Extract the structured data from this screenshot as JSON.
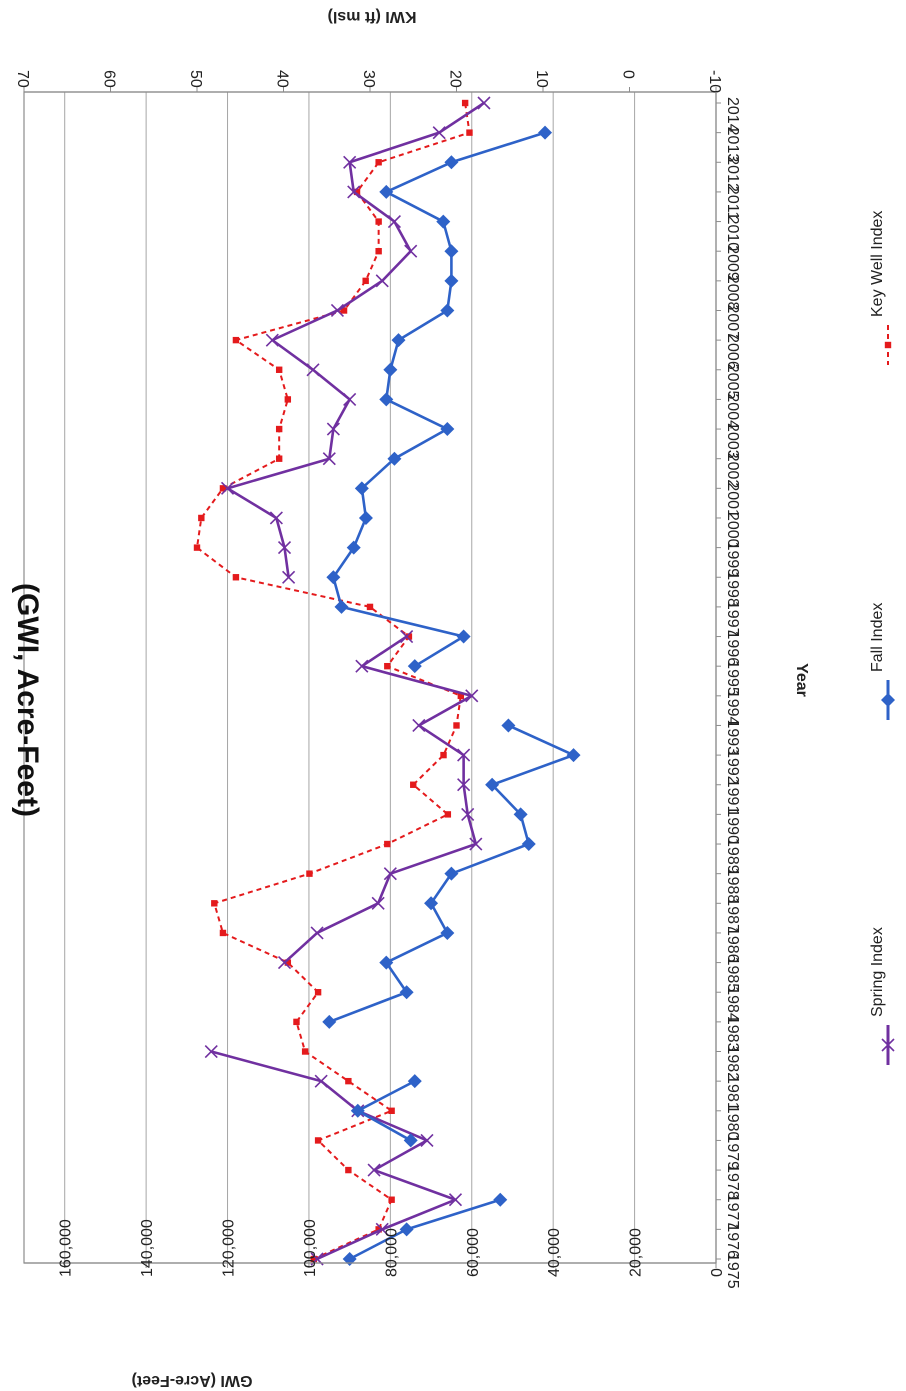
{
  "chart_data": {
    "type": "line",
    "title": "(GWI, Acre-Feet)",
    "xlabel": "Year",
    "ylabel_left": "GWI (Acre-Feet)",
    "ylabel_right": "KWI (ft msl)",
    "categories": [
      "1975",
      "1976",
      "1977",
      "1978",
      "1979",
      "1980",
      "1981",
      "1982",
      "1983",
      "1984",
      "1985",
      "1986",
      "1987",
      "1988",
      "1989",
      "1990",
      "1991",
      "1992",
      "1993",
      "1994",
      "1995",
      "1996",
      "1997",
      "1998",
      "1999",
      "2000",
      "2001",
      "2002",
      "2003",
      "2004",
      "2005",
      "2006",
      "2007",
      "2008",
      "2009",
      "2010",
      "2011",
      "2012",
      "2013",
      "2014"
    ],
    "gwi_ticks": [
      "0",
      "20,000",
      "40,000",
      "60,000",
      "80,000",
      "100,000",
      "120,000",
      "140,000",
      "160,000"
    ],
    "gwi_tick_values": [
      0,
      20000,
      40000,
      60000,
      80000,
      100000,
      120000,
      140000,
      160000
    ],
    "kwi_ticks": [
      "-10",
      "0",
      "10",
      "20",
      "30",
      "40",
      "50",
      "60",
      "70"
    ],
    "kwi_tick_values": [
      -10,
      0,
      10,
      20,
      30,
      40,
      50,
      60,
      70
    ],
    "ylim_gwi": [
      0,
      170000
    ],
    "ylim_kwi": [
      -10,
      70
    ],
    "grid": true,
    "legend_position": "bottom",
    "series": [
      {
        "name": "Spring Index",
        "axis": "gwi",
        "color": "#7030a0",
        "marker": "x",
        "values": [
          98000,
          82000,
          64000,
          84000,
          71000,
          88000,
          97000,
          124000,
          null,
          null,
          106000,
          98000,
          83000,
          80000,
          59000,
          61000,
          62000,
          62000,
          73000,
          60000,
          87000,
          76000,
          null,
          105000,
          106000,
          108000,
          120000,
          95000,
          94000,
          90000,
          99000,
          109000,
          93000,
          82000,
          75000,
          79000,
          89000,
          90000,
          68000,
          57000
        ]
      },
      {
        "name": "Fall Index",
        "axis": "gwi",
        "color": "#2e62c8",
        "marker": "diamond",
        "values": [
          90000,
          76000,
          53000,
          null,
          75000,
          88000,
          74000,
          null,
          95000,
          76000,
          81000,
          66000,
          70000,
          65000,
          46000,
          48000,
          55000,
          35000,
          51000,
          null,
          74000,
          62000,
          92000,
          94000,
          89000,
          86000,
          87000,
          79000,
          66000,
          81000,
          80000,
          78000,
          66000,
          65000,
          65000,
          67000,
          81000,
          65000,
          42000,
          null
        ]
      },
      {
        "name": "Key Well Index",
        "axis": "kwi",
        "color": "#e41a1c",
        "marker": "square",
        "dashed": true,
        "values": [
          36.5,
          29,
          27.5,
          32.5,
          36,
          27.5,
          32.5,
          37.5,
          38.5,
          36,
          39.5,
          47,
          48,
          37,
          28,
          21,
          25,
          21.5,
          20,
          19.5,
          28,
          25.5,
          30,
          45.5,
          50,
          49.5,
          47,
          40.5,
          40.5,
          39.5,
          40.5,
          45.5,
          33,
          30.5,
          29,
          29,
          31.5,
          29,
          18.5,
          19
        ]
      }
    ]
  }
}
